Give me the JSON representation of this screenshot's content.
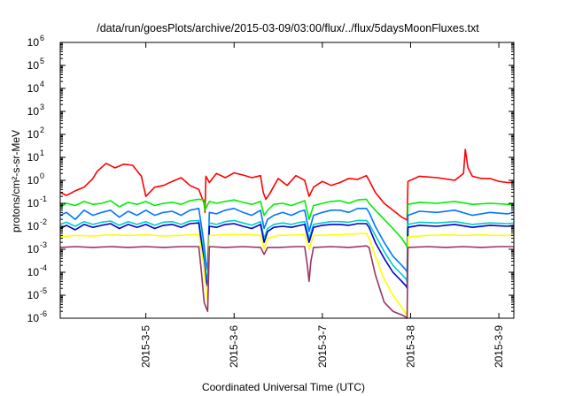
{
  "chart_data": {
    "type": "line",
    "title": "/data/run/goesPlots/archive/2015-03-09/03:00/flux/../flux/5daysMoonFluxes.txt",
    "xlabel": "Coordinated Universal Time (UTC)",
    "ylabel": "protons/cm²-s-sr-MeV",
    "yscale": "log",
    "ylim": [
      1e-06,
      1000000.0
    ],
    "y_ticks": [
      {
        "value": 1000000.0,
        "base": "10",
        "exp": "6"
      },
      {
        "value": 100000.0,
        "base": "10",
        "exp": "5"
      },
      {
        "value": 10000.0,
        "base": "10",
        "exp": "4"
      },
      {
        "value": 1000.0,
        "base": "10",
        "exp": "3"
      },
      {
        "value": 100.0,
        "base": "10",
        "exp": "2"
      },
      {
        "value": 10.0,
        "base": "10",
        "exp": "1"
      },
      {
        "value": 1.0,
        "base": "10",
        "exp": "0"
      },
      {
        "value": 0.1,
        "base": "10",
        "exp": "-1"
      },
      {
        "value": 0.01,
        "base": "10",
        "exp": "-2"
      },
      {
        "value": 0.001,
        "base": "10",
        "exp": "-3"
      },
      {
        "value": 0.0001,
        "base": "10",
        "exp": "-4"
      },
      {
        "value": 1e-05,
        "base": "10",
        "exp": "-5"
      },
      {
        "value": 1e-06,
        "base": "10",
        "exp": "-6"
      }
    ],
    "xlim": [
      4.03,
      9.17
    ],
    "x_ticks": [
      {
        "value": 5,
        "label": "2015-3-5"
      },
      {
        "value": 6,
        "label": "2015-3-6"
      },
      {
        "value": 7,
        "label": "2015-3-7"
      },
      {
        "value": 8,
        "label": "2015-3-8"
      },
      {
        "value": 9,
        "label": "2015-3-9"
      }
    ],
    "grid": false,
    "series": [
      {
        "color": "#ff0000",
        "x": [
          4.03,
          4.1,
          4.2,
          4.3,
          4.4,
          4.45,
          4.55,
          4.65,
          4.75,
          4.85,
          4.95,
          5.0,
          5.1,
          5.2,
          5.3,
          5.4,
          5.5,
          5.6,
          5.66,
          5.67,
          5.68,
          5.72,
          5.8,
          5.9,
          6.0,
          6.1,
          6.2,
          6.3,
          6.33,
          6.36,
          6.4,
          6.5,
          6.6,
          6.7,
          6.8,
          6.85,
          6.9,
          7.0,
          7.1,
          7.2,
          7.3,
          7.4,
          7.5,
          7.53,
          7.6,
          7.7,
          7.8,
          7.9,
          7.95,
          7.96,
          7.97,
          8.1,
          8.3,
          8.5,
          8.6,
          8.62,
          8.65,
          8.7,
          8.8,
          8.9,
          9.0,
          9.1,
          9.17
        ],
        "y": [
          0.3,
          0.22,
          0.35,
          0.5,
          1.2,
          2.5,
          5.5,
          3.5,
          5,
          4.5,
          1.5,
          0.2,
          0.5,
          0.6,
          0.9,
          1.3,
          0.6,
          0.4,
          0.1,
          0.04,
          1.5,
          0.8,
          2.0,
          1.3,
          2.1,
          1.7,
          1.3,
          1.6,
          0.3,
          0.15,
          0.25,
          1.2,
          0.6,
          1.6,
          1.0,
          0.2,
          0.5,
          0.9,
          0.6,
          0.8,
          1.2,
          1.1,
          1.6,
          1.0,
          0.3,
          0.1,
          0.05,
          0.025,
          0.02,
          0.018,
          0.9,
          1.5,
          1.3,
          1.0,
          2.0,
          22,
          3.5,
          1.5,
          1.2,
          1.2,
          0.9,
          0.8,
          0.8
        ]
      },
      {
        "color": "#00ee00",
        "x": [
          4.03,
          4.1,
          4.2,
          4.3,
          4.4,
          4.5,
          4.6,
          4.7,
          4.8,
          4.9,
          5.0,
          5.1,
          5.2,
          5.3,
          5.4,
          5.5,
          5.6,
          5.66,
          5.67,
          5.72,
          5.8,
          5.9,
          6.0,
          6.1,
          6.2,
          6.3,
          6.34,
          6.38,
          6.45,
          6.55,
          6.65,
          6.75,
          6.8,
          6.85,
          6.9,
          7.0,
          7.1,
          7.2,
          7.3,
          7.4,
          7.5,
          7.53,
          7.6,
          7.7,
          7.8,
          7.9,
          7.95,
          7.96,
          7.97,
          8.1,
          8.3,
          8.5,
          8.7,
          8.9,
          9.1,
          9.17
        ],
        "y": [
          0.07,
          0.1,
          0.08,
          0.12,
          0.09,
          0.1,
          0.13,
          0.07,
          0.11,
          0.09,
          0.12,
          0.08,
          0.1,
          0.11,
          0.09,
          0.13,
          0.15,
          0.14,
          0.05,
          0.12,
          0.1,
          0.12,
          0.14,
          0.11,
          0.09,
          0.12,
          0.03,
          0.05,
          0.09,
          0.1,
          0.08,
          0.11,
          0.13,
          0.02,
          0.08,
          0.1,
          0.12,
          0.13,
          0.1,
          0.14,
          0.15,
          0.1,
          0.05,
          0.02,
          0.008,
          0.003,
          0.0015,
          0.0012,
          0.09,
          0.11,
          0.1,
          0.12,
          0.09,
          0.1,
          0.09,
          0.09
        ]
      },
      {
        "color": "#0077ff",
        "x": [
          4.03,
          4.1,
          4.2,
          4.3,
          4.4,
          4.5,
          4.6,
          4.7,
          4.8,
          4.9,
          5.0,
          5.1,
          5.2,
          5.3,
          5.4,
          5.5,
          5.6,
          5.65,
          5.68,
          5.7,
          5.72,
          5.8,
          5.9,
          6.0,
          6.1,
          6.2,
          6.3,
          6.34,
          6.38,
          6.45,
          6.55,
          6.65,
          6.75,
          6.8,
          6.85,
          6.9,
          7.0,
          7.1,
          7.2,
          7.3,
          7.4,
          7.5,
          7.53,
          7.6,
          7.7,
          7.8,
          7.9,
          7.95,
          7.96,
          7.97,
          8.1,
          8.3,
          8.5,
          8.7,
          8.9,
          9.1,
          9.17
        ],
        "y": [
          0.03,
          0.04,
          0.02,
          0.05,
          0.03,
          0.04,
          0.05,
          0.025,
          0.045,
          0.03,
          0.05,
          0.03,
          0.04,
          0.045,
          0.03,
          0.05,
          0.06,
          0.003,
          0.0003,
          0.00012,
          0.04,
          0.035,
          0.05,
          0.06,
          0.04,
          0.03,
          0.05,
          0.008,
          0.02,
          0.03,
          0.04,
          0.03,
          0.045,
          0.05,
          0.006,
          0.03,
          0.04,
          0.05,
          0.05,
          0.04,
          0.06,
          0.06,
          0.04,
          0.01,
          0.002,
          0.0005,
          0.0002,
          0.00012,
          0.0001,
          0.03,
          0.045,
          0.04,
          0.05,
          0.03,
          0.04,
          0.035,
          0.04
        ]
      },
      {
        "color": "#00cccc",
        "x": [
          4.03,
          4.1,
          4.2,
          4.3,
          4.4,
          4.5,
          4.6,
          4.7,
          4.8,
          4.9,
          5.0,
          5.1,
          5.2,
          5.3,
          5.4,
          5.5,
          5.6,
          5.65,
          5.68,
          5.7,
          5.72,
          5.8,
          5.9,
          6.0,
          6.1,
          6.2,
          6.3,
          6.34,
          6.38,
          6.45,
          6.55,
          6.65,
          6.75,
          6.8,
          6.85,
          6.9,
          7.0,
          7.1,
          7.2,
          7.3,
          7.4,
          7.5,
          7.53,
          7.6,
          7.7,
          7.8,
          7.9,
          7.95,
          7.96,
          7.97,
          8.1,
          8.3,
          8.5,
          8.7,
          8.9,
          9.1,
          9.17
        ],
        "y": [
          0.012,
          0.015,
          0.01,
          0.016,
          0.012,
          0.015,
          0.017,
          0.011,
          0.016,
          0.012,
          0.016,
          0.011,
          0.015,
          0.016,
          0.012,
          0.017,
          0.018,
          0.001,
          0.0001,
          4e-05,
          0.014,
          0.012,
          0.016,
          0.018,
          0.014,
          0.011,
          0.016,
          0.003,
          0.008,
          0.012,
          0.014,
          0.012,
          0.015,
          0.016,
          0.003,
          0.012,
          0.014,
          0.016,
          0.016,
          0.015,
          0.018,
          0.018,
          0.013,
          0.004,
          0.0008,
          0.0002,
          8e-05,
          5e-05,
          4e-05,
          0.012,
          0.015,
          0.014,
          0.016,
          0.012,
          0.014,
          0.013,
          0.014
        ]
      },
      {
        "color": "#0000cc",
        "x": [
          4.03,
          4.1,
          4.2,
          4.3,
          4.4,
          4.5,
          4.6,
          4.7,
          4.8,
          4.9,
          5.0,
          5.1,
          5.2,
          5.3,
          5.4,
          5.5,
          5.6,
          5.65,
          5.68,
          5.7,
          5.72,
          5.8,
          5.9,
          6.0,
          6.1,
          6.2,
          6.3,
          6.34,
          6.38,
          6.45,
          6.55,
          6.65,
          6.75,
          6.8,
          6.85,
          6.9,
          7.0,
          7.1,
          7.2,
          7.3,
          7.4,
          7.5,
          7.53,
          7.6,
          7.7,
          7.8,
          7.9,
          7.95,
          7.96,
          7.97,
          8.1,
          8.3,
          8.5,
          8.7,
          8.9,
          9.1,
          9.17
        ],
        "y": [
          0.008,
          0.011,
          0.007,
          0.012,
          0.009,
          0.011,
          0.013,
          0.008,
          0.012,
          0.009,
          0.012,
          0.008,
          0.011,
          0.012,
          0.009,
          0.013,
          0.014,
          0.0005,
          5e-05,
          2.5e-05,
          0.01,
          0.009,
          0.012,
          0.013,
          0.01,
          0.008,
          0.012,
          0.002,
          0.006,
          0.009,
          0.01,
          0.009,
          0.011,
          0.012,
          0.002,
          0.009,
          0.011,
          0.012,
          0.012,
          0.011,
          0.013,
          0.013,
          0.009,
          0.002,
          0.0004,
          0.0001,
          4e-05,
          2.5e-05,
          2e-05,
          0.009,
          0.011,
          0.01,
          0.012,
          0.009,
          0.011,
          0.01,
          0.011
        ]
      },
      {
        "color": "#ffff00",
        "x": [
          4.03,
          4.2,
          4.4,
          4.6,
          4.8,
          5.0,
          5.2,
          5.4,
          5.6,
          5.65,
          5.68,
          5.7,
          5.72,
          5.9,
          6.1,
          6.3,
          6.34,
          6.38,
          6.5,
          6.7,
          6.8,
          6.85,
          6.9,
          7.1,
          7.3,
          7.5,
          7.53,
          7.6,
          7.7,
          7.8,
          7.9,
          7.95,
          7.96,
          7.97,
          8.2,
          8.4,
          8.6,
          8.8,
          9.0,
          9.17
        ],
        "y": [
          0.0035,
          0.004,
          0.0038,
          0.0042,
          0.004,
          0.0042,
          0.0038,
          0.004,
          0.0045,
          0.0003,
          2e-05,
          5e-06,
          0.004,
          0.0042,
          0.0045,
          0.004,
          0.001,
          0.003,
          0.004,
          0.0042,
          0.0045,
          0.001,
          0.004,
          0.0042,
          0.0045,
          0.005,
          0.003,
          0.0005,
          5e-05,
          1e-05,
          3e-06,
          1.5e-06,
          1.2e-06,
          0.0035,
          0.004,
          0.0042,
          0.004,
          0.0042,
          0.004,
          0.004
        ]
      },
      {
        "color": "#993366",
        "x": [
          4.03,
          4.2,
          4.4,
          4.6,
          4.8,
          5.0,
          5.2,
          5.4,
          5.6,
          5.63,
          5.66,
          5.68,
          5.7,
          5.72,
          5.9,
          6.1,
          6.3,
          6.34,
          6.38,
          6.5,
          6.7,
          6.8,
          6.83,
          6.85,
          6.87,
          6.9,
          7.1,
          7.3,
          7.5,
          7.53,
          7.6,
          7.7,
          7.8,
          7.9,
          7.95,
          7.96,
          7.97,
          8.2,
          8.4,
          8.6,
          8.8,
          9.0,
          9.17
        ],
        "y": [
          0.0012,
          0.0013,
          0.0012,
          0.0013,
          0.0012,
          0.0013,
          0.0012,
          0.0013,
          0.0013,
          0.0001,
          5e-06,
          3e-06,
          2e-06,
          0.0013,
          0.0012,
          0.0013,
          0.0012,
          0.0006,
          0.0012,
          0.0012,
          0.0013,
          0.0013,
          0.0002,
          4e-05,
          0.0003,
          0.0012,
          0.0013,
          0.0012,
          0.0014,
          0.0012,
          8e-05,
          5e-06,
          2e-06,
          1.4e-06,
          1.1e-06,
          1e-06,
          0.0012,
          0.0013,
          0.0012,
          0.0013,
          0.0012,
          0.0013,
          0.0013
        ]
      }
    ]
  }
}
